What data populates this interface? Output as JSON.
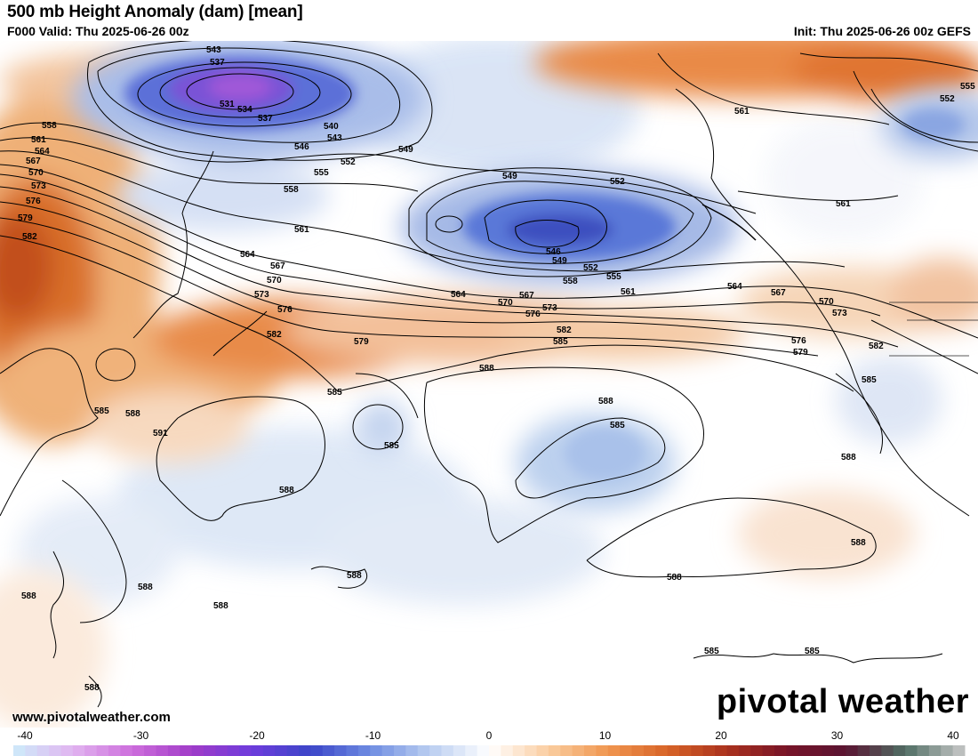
{
  "header": {
    "title": "500 mb Height Anomaly (dam) [mean]",
    "valid": "F000 Valid: Thu 2025-06-26 00z",
    "init": "Init: Thu 2025-06-26 00z GEFS"
  },
  "footer": {
    "site_url": "www.pivotalweather.com",
    "brand": "pivotal weather"
  },
  "colorbar": {
    "ticks": [
      "-40",
      "-30",
      "-20",
      "-10",
      "0",
      "10",
      "20",
      "30",
      "40"
    ],
    "range": [
      -40,
      40
    ]
  },
  "contour_labels": {
    "l543": "543",
    "l537": "537",
    "l531": "531",
    "l534": "534",
    "l537b": "537",
    "l540": "540",
    "l543b": "543",
    "l546": "546",
    "l549": "549",
    "l552": "552",
    "l555": "555",
    "l558": "558",
    "l561": "561",
    "l564": "564",
    "l567": "567",
    "l570": "570",
    "l573": "573",
    "l576": "576",
    "l579": "579",
    "l582": "582",
    "l585": "585",
    "l588": "588",
    "l591": "591",
    "w558": "558",
    "w561": "561",
    "w564": "564",
    "w567": "567",
    "w570": "570",
    "w573": "573",
    "w576": "576",
    "w579": "579",
    "w582": "582",
    "w585": "585",
    "w588": "588",
    "c549": "549",
    "c552": "552",
    "c546": "546",
    "c549b": "549",
    "c552b": "552",
    "c555": "555",
    "c558": "558",
    "c561": "561",
    "c564": "564",
    "c567": "567",
    "c570": "570",
    "c573": "573",
    "c576": "576",
    "c579": "579",
    "c582": "582",
    "c585": "585",
    "c588": "588",
    "e561": "561",
    "e564": "564",
    "e567": "567",
    "e570": "570",
    "e573": "573",
    "e576": "576",
    "e579": "579",
    "e582": "582",
    "e585": "585",
    "e588": "588",
    "e561b": "561",
    "e552": "552",
    "e555": "555",
    "s585": "585",
    "s588": "588",
    "s585b": "585",
    "s588b": "588",
    "s588c": "588",
    "s588d": "588",
    "s588e": "588",
    "s588f": "588",
    "s588g": "588",
    "s585c": "585",
    "s585d": "585",
    "s588h": "588",
    "s588i": "588"
  }
}
